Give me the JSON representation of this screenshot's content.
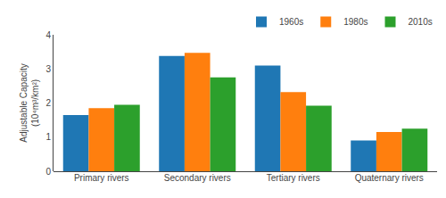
{
  "chart_data": {
    "type": "bar",
    "categories": [
      "Primary rivers",
      "Secondary rivers",
      "Tertiary rivers",
      "Quaternary rivers"
    ],
    "series": [
      {
        "name": "1960s",
        "values": [
          1.65,
          3.38,
          3.1,
          0.9
        ]
      },
      {
        "name": "1980s",
        "values": [
          1.85,
          3.47,
          2.32,
          1.15
        ]
      },
      {
        "name": "2010s",
        "values": [
          1.95,
          2.75,
          1.92,
          1.25
        ]
      }
    ],
    "ylabel": "Adjustable Capacity\n(10⁴m³/km²)",
    "ylim": [
      0,
      4
    ],
    "yticks": [
      0,
      1,
      2,
      3,
      4
    ],
    "grid": false,
    "legend": "upper right"
  }
}
